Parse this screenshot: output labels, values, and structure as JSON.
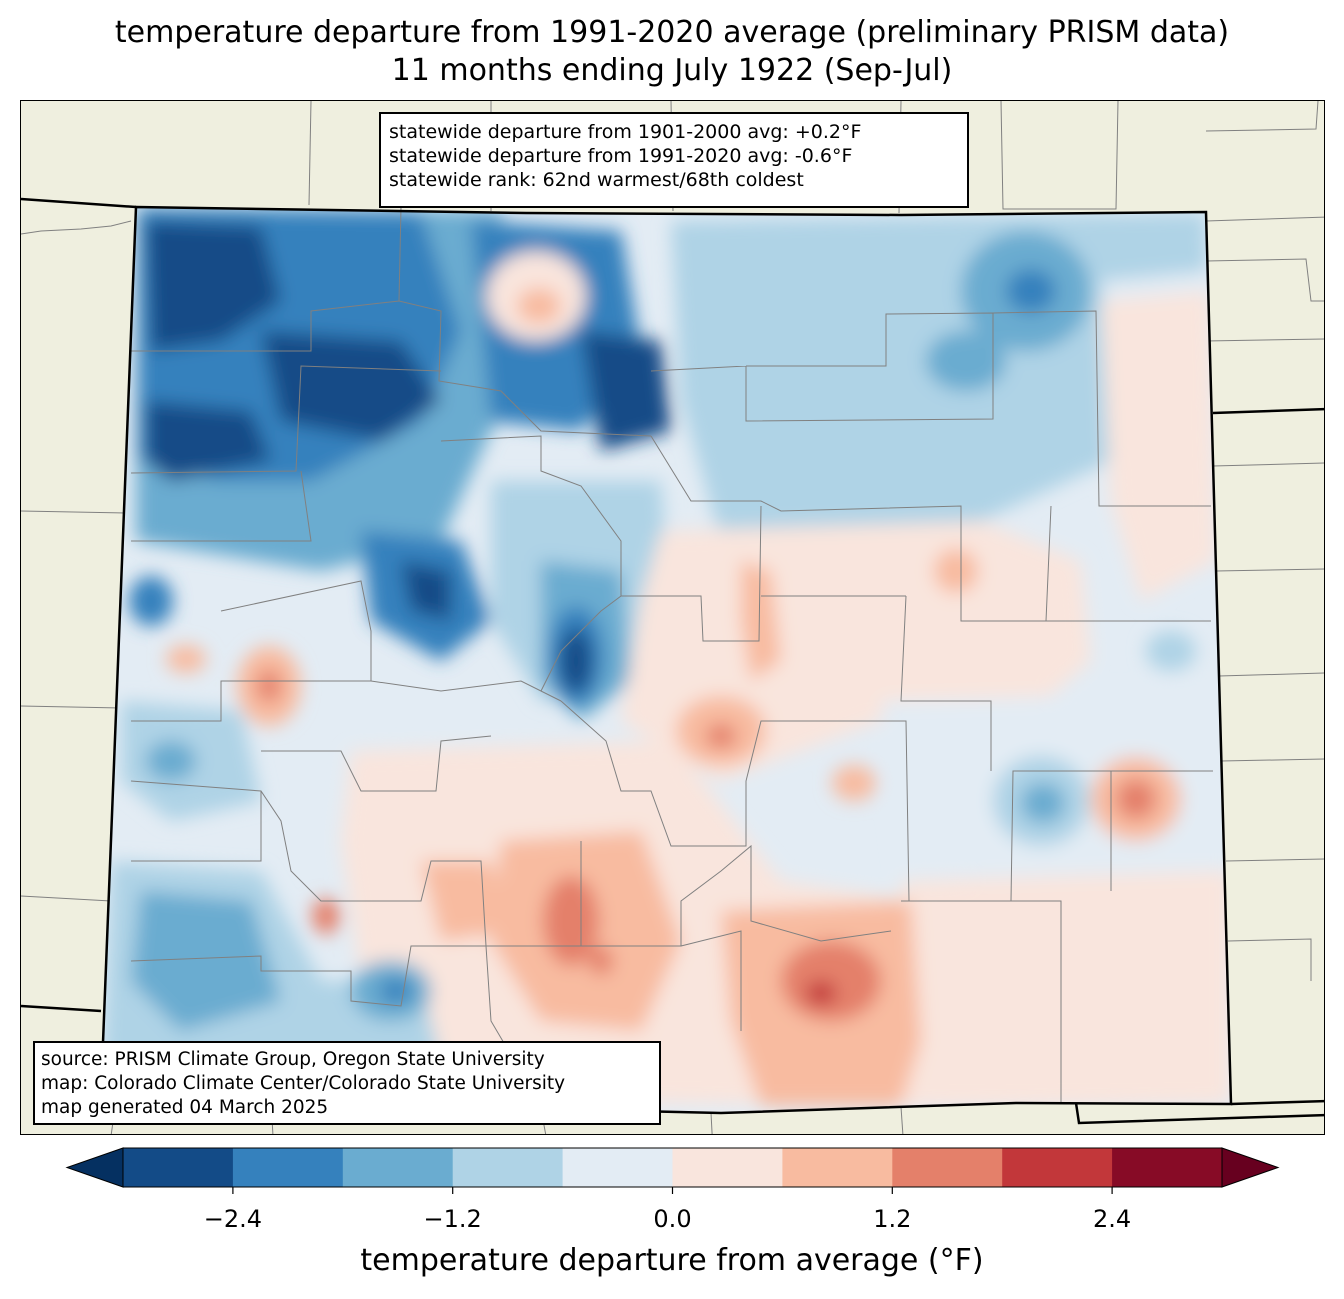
{
  "title": {
    "line1": "temperature departure from 1991-2020 average (preliminary PRISM data)",
    "line2": "11 months ending July 1922 (Sep-Jul)"
  },
  "stats": {
    "line1": "statewide departure from 1901-2000 avg: +0.2°F",
    "line2": "statewide departure from 1991-2020 avg: -0.6°F",
    "line3": "statewide rank: 62nd warmest/68th coldest"
  },
  "source": {
    "line1": "source: PRISM Climate Group, Oregon State University",
    "line2": "map: Colorado Climate Center/Colorado State University",
    "line3": "map generated 04 March 2025"
  },
  "colorbar": {
    "label": "temperature departure from average (°F)",
    "bounds": [
      -3.0,
      -2.4,
      -1.8,
      -1.2,
      -0.6,
      0.0,
      0.6,
      1.2,
      1.8,
      2.4,
      3.0
    ],
    "tick_values": [
      -2.4,
      -1.2,
      0.0,
      1.2,
      2.4
    ],
    "ticks": [
      "−2.4",
      "−1.2",
      "0.0",
      "1.2",
      "2.4"
    ],
    "colors": [
      "#134b87",
      "#3581bd",
      "#6aacd0",
      "#afd3e6",
      "#e3ecf4",
      "#f9e5dd",
      "#f8bba0",
      "#e4806a",
      "#c2373a",
      "#870b26"
    ],
    "under_color": "#053061",
    "over_color": "#67001f"
  },
  "map": {
    "land_color": "#efefdf",
    "state_border_color": "#000000",
    "county_border_color": "#808080",
    "regions": [
      {
        "name": "northwest-colorado",
        "departure": -1.9
      },
      {
        "name": "north-central-mountains",
        "departure": -1.6
      },
      {
        "name": "north-park-area",
        "departure": 1.0
      },
      {
        "name": "northeast-plains",
        "departure": -0.9
      },
      {
        "name": "northeast-cold-spot",
        "departure": -2.2
      },
      {
        "name": "west-central-valleys",
        "departure": -0.7
      },
      {
        "name": "montrose-warm-spot",
        "departure": 1.5
      },
      {
        "name": "central-mountains",
        "departure": -1.5
      },
      {
        "name": "sawatch-cold-spot",
        "departure": -3.0
      },
      {
        "name": "east-central-plains",
        "departure": 0.4
      },
      {
        "name": "southeast-plains",
        "departure": 0.2
      },
      {
        "name": "southeast-cold-spot",
        "departure": -1.5
      },
      {
        "name": "southeast-warm-spot",
        "departure": 1.4
      },
      {
        "name": "san-luis-valley",
        "departure": 1.0
      },
      {
        "name": "raton-mesa-warm-spot",
        "departure": 2.5
      },
      {
        "name": "southwest-colorado",
        "departure": -1.0
      }
    ]
  }
}
